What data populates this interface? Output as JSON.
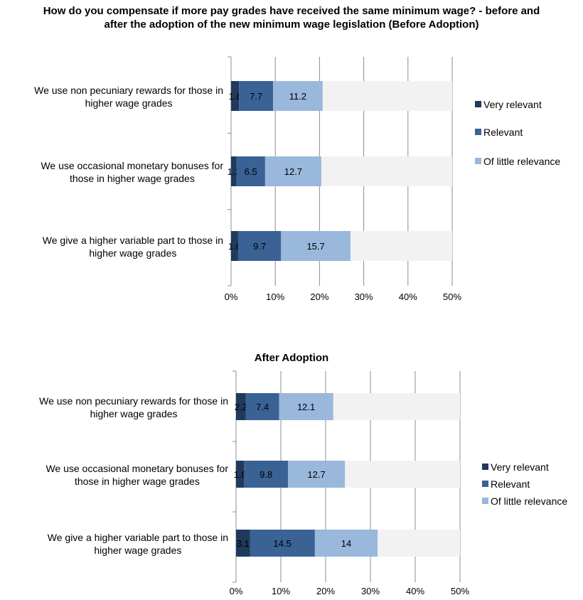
{
  "chart_data": [
    {
      "type": "bar",
      "orientation": "horizontal",
      "stacked": true,
      "title": "How do you compensate if more pay grades have received the same minimum wage? - before and after the adoption of the new minimum wage legislation (Before Adoption)",
      "categories": [
        "We use non pecuniary rewards for those in higher wage grades",
        "We use occasional monetary bonuses for those in higher wage grades",
        "We give a higher variable part to those in higher wage grades"
      ],
      "category_lines": [
        [
          "We use non pecuniary rewards for those in",
          "higher wage grades"
        ],
        [
          "We use occasional monetary bonuses for",
          "those in higher wage grades"
        ],
        [
          "We give a higher variable part to those in",
          "higher wage grades"
        ]
      ],
      "series": [
        {
          "name": "Very relevant",
          "values": [
            1.8,
            1.2,
            1.6
          ],
          "labels": [
            "1.8",
            "1.2",
            "1.6"
          ]
        },
        {
          "name": "Relevant",
          "values": [
            7.7,
            6.5,
            9.7
          ],
          "labels": [
            "7.7",
            "6.5",
            "9.7"
          ]
        },
        {
          "name": "Of little relevance",
          "values": [
            11.2,
            12.7,
            15.7
          ],
          "labels": [
            "11.2",
            "12.7",
            "15.7"
          ]
        }
      ],
      "xlim": [
        0,
        50
      ],
      "xticks": [
        "0%",
        "10%",
        "20%",
        "30%",
        "40%",
        "50%"
      ],
      "grid": true,
      "legend_position": "right"
    },
    {
      "type": "bar",
      "orientation": "horizontal",
      "stacked": true,
      "title": "After Adoption",
      "categories": [
        "We use non pecuniary rewards for those in higher wage grades",
        "We use occasional monetary bonuses for those in higher wage grades",
        "We give a higher variable part to those in higher wage grades"
      ],
      "category_lines": [
        [
          "We use non pecuniary rewards for those in",
          "higher wage grades"
        ],
        [
          "We use occasional monetary bonuses for",
          "those in higher wage grades"
        ],
        [
          "We give a higher variable part to those in",
          "higher wage grades"
        ]
      ],
      "series": [
        {
          "name": "Very relevant",
          "values": [
            2.2,
            1.8,
            3.1
          ],
          "labels": [
            "2.2",
            "1.8",
            "3.1"
          ]
        },
        {
          "name": "Relevant",
          "values": [
            7.4,
            9.8,
            14.5
          ],
          "labels": [
            "7.4",
            "9.8",
            "14.5"
          ]
        },
        {
          "name": "Of little relevance",
          "values": [
            12.1,
            12.7,
            14
          ],
          "labels": [
            "12.1",
            "12.7",
            "14"
          ]
        }
      ],
      "xlim": [
        0,
        50
      ],
      "xticks": [
        "0%",
        "10%",
        "20%",
        "30%",
        "40%",
        "50%"
      ],
      "grid": true,
      "legend_position": "right"
    }
  ],
  "colors": {
    "very_relevant": "#1f3a5c",
    "relevant": "#3a6294",
    "of_little_relevance": "#9ab7dc",
    "remainder": "#f2f2f2",
    "grid": "#8c8c8c"
  }
}
